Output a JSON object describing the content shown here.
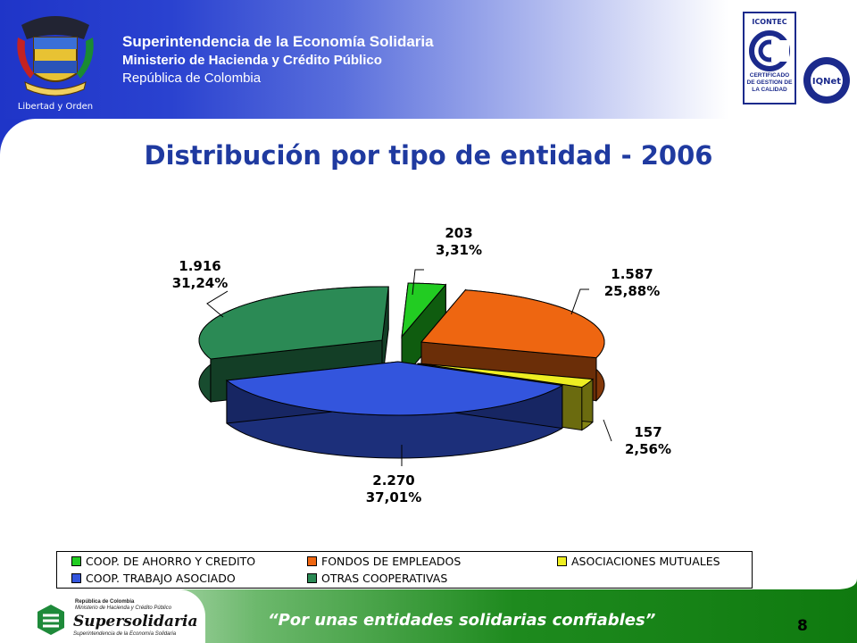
{
  "header": {
    "org_line1": "Superintendencia de la Economía Solidaria",
    "org_line2": "Ministerio de Hacienda y Crédito Público",
    "org_line3": "República de Colombia",
    "crest_motto": "Libertad y Orden",
    "cert_logo_top": "ICONTEC",
    "cert_logo_text": "CERTIFICADO DE GESTION DE LA CALIDAD",
    "iqnet_text": "IQNet"
  },
  "slide": {
    "title": "Distribución por tipo de entidad - 2006",
    "page_number": "8",
    "slogan": "“Por unas entidades solidarias confiables”"
  },
  "footer_logo": {
    "small1": "República de Colombia",
    "small2": "Ministerio de Hacienda y Crédito Público",
    "name": "Supersolidaria",
    "sub": "Superintendencia de la Economía Solidaria"
  },
  "chart_data": {
    "type": "pie",
    "title": "Distribución por tipo de entidad - 2006",
    "legend_position": "bottom",
    "slices": [
      {
        "name": "COOP. DE AHORRO Y CREDITO",
        "value": 203,
        "value_label": "203",
        "percent_label": "3,31%",
        "color": "#22cc22"
      },
      {
        "name": "FONDOS DE EMPLEADOS",
        "value": 1587,
        "value_label": "1.587",
        "percent_label": "25,88%",
        "color": "#ee6611"
      },
      {
        "name": "ASOCIACIONES MUTUALES",
        "value": 157,
        "value_label": "157",
        "percent_label": "2,56%",
        "color": "#eeee22"
      },
      {
        "name": "COOP. TRABAJO ASOCIADO",
        "value": 2270,
        "value_label": "2.270",
        "percent_label": "37,01%",
        "color": "#3355dd"
      },
      {
        "name": "OTRAS COOPERATIVAS",
        "value": 1916,
        "value_label": "1.916",
        "percent_label": "31,24%",
        "color": "#2b8a55"
      }
    ]
  }
}
